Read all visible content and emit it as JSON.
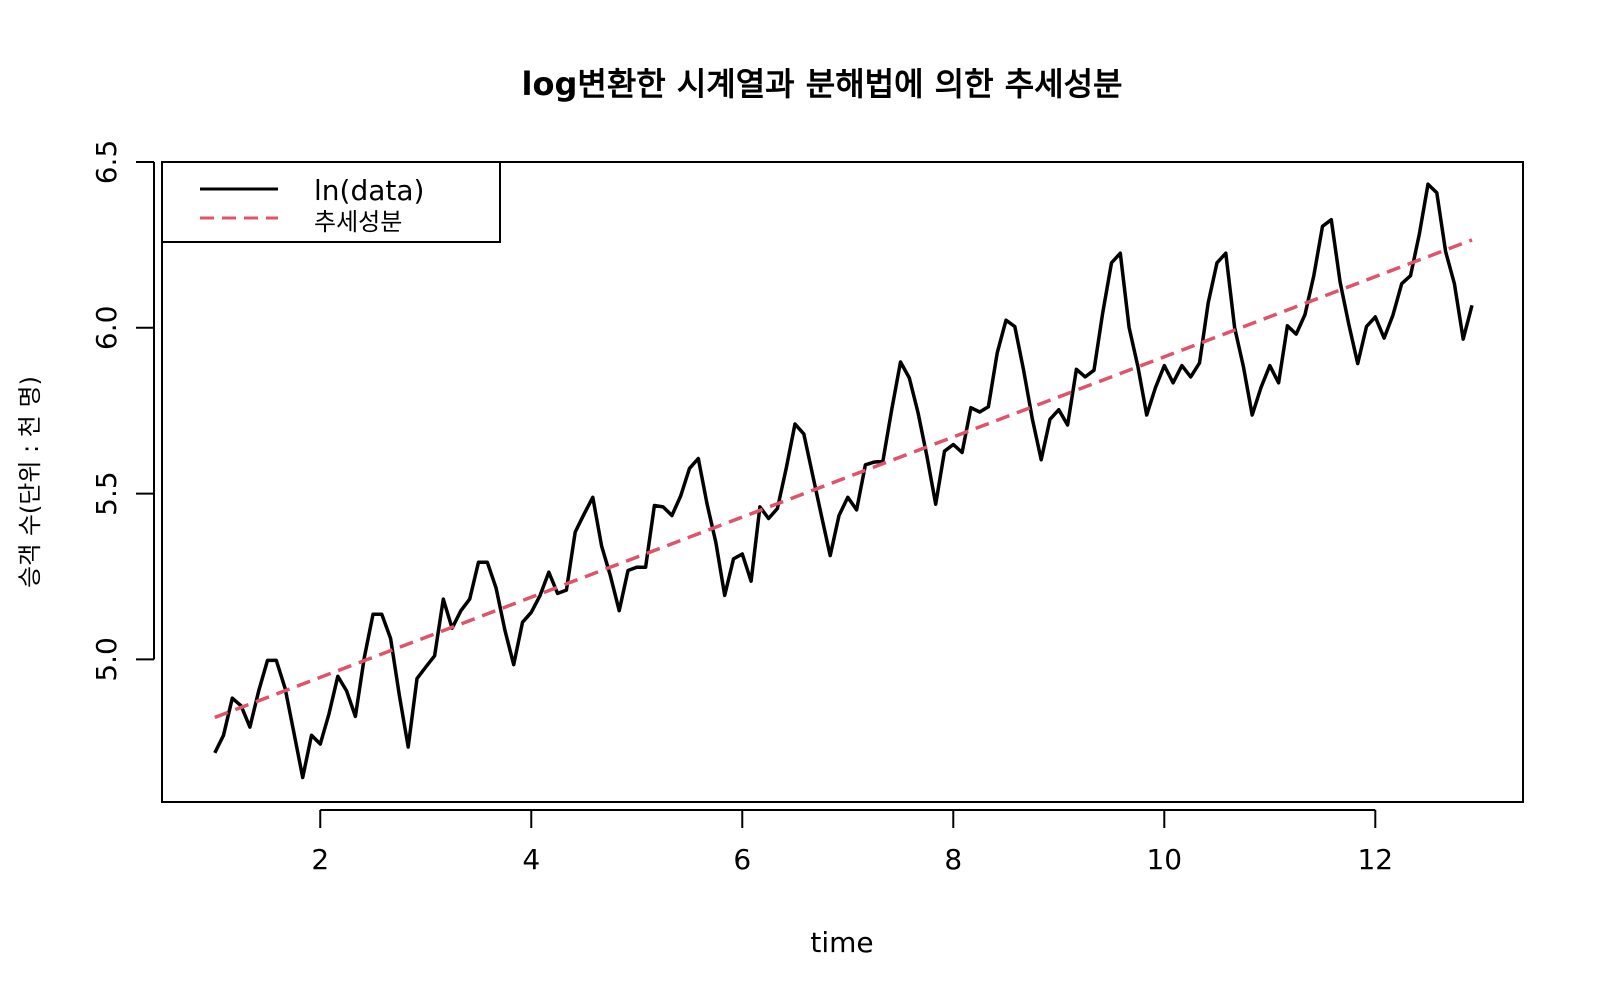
{
  "chart_data": {
    "type": "line",
    "title": "log변환한 시계열과 분해법에 의한 추세성분",
    "xlabel": "time",
    "ylabel": "승객 수(단위 : 천 명)",
    "xlim": [
      0.5,
      13.4
    ],
    "ylim": [
      4.57,
      6.5
    ],
    "xticks": [
      2,
      4,
      6,
      8,
      10,
      12
    ],
    "yticks": [
      5.0,
      5.5,
      6.0,
      6.5
    ],
    "xtick_labels": [
      "2",
      "4",
      "6",
      "8",
      "10",
      "12"
    ],
    "ytick_labels": [
      "5.0",
      "5.5",
      "6.0",
      "6.5"
    ],
    "legend_position": "top-left",
    "grid": false,
    "series": [
      {
        "name": "ln(data)",
        "color": "#000000",
        "style": "solid",
        "x_start": 1,
        "x_step": 0.0833333,
        "values": [
          4.718,
          4.771,
          4.883,
          4.86,
          4.796,
          4.905,
          4.997,
          4.997,
          4.913,
          4.779,
          4.644,
          4.771,
          4.745,
          4.836,
          4.949,
          4.905,
          4.828,
          5.004,
          5.136,
          5.136,
          5.063,
          4.891,
          4.736,
          4.942,
          4.977,
          5.011,
          5.182,
          5.094,
          5.147,
          5.182,
          5.293,
          5.293,
          5.215,
          5.088,
          4.984,
          5.112,
          5.142,
          5.193,
          5.263,
          5.199,
          5.209,
          5.384,
          5.438,
          5.489,
          5.342,
          5.252,
          5.147,
          5.268,
          5.278,
          5.278,
          5.464,
          5.46,
          5.434,
          5.493,
          5.576,
          5.606,
          5.468,
          5.352,
          5.193,
          5.303,
          5.318,
          5.236,
          5.46,
          5.425,
          5.455,
          5.576,
          5.71,
          5.68,
          5.557,
          5.434,
          5.313,
          5.434,
          5.489,
          5.451,
          5.587,
          5.595,
          5.598,
          5.753,
          5.897,
          5.849,
          5.743,
          5.613,
          5.468,
          5.628,
          5.648,
          5.624,
          5.759,
          5.746,
          5.762,
          5.924,
          6.023,
          6.004,
          5.872,
          5.724,
          5.602,
          5.724,
          5.753,
          5.707,
          5.875,
          5.852,
          5.872,
          6.045,
          6.196,
          6.225,
          6.001,
          5.883,
          5.737,
          5.82,
          5.886,
          5.834,
          5.886,
          5.852,
          5.894,
          6.075,
          6.196,
          6.225,
          6.001,
          5.883,
          5.737,
          5.82,
          5.886,
          5.834,
          6.006,
          5.981,
          6.04,
          6.157,
          6.306,
          6.326,
          6.138,
          6.009,
          5.892,
          6.004,
          6.033,
          5.969,
          6.038,
          6.133,
          6.157,
          6.282,
          6.433,
          6.407,
          6.23,
          6.133,
          5.966,
          6.068
        ]
      },
      {
        "name": "추세성분",
        "color": "#DF536B",
        "style": "dashed",
        "x_start": 1,
        "x_end": 12.9167,
        "y_start": 4.825,
        "y_end": 6.265
      }
    ]
  }
}
